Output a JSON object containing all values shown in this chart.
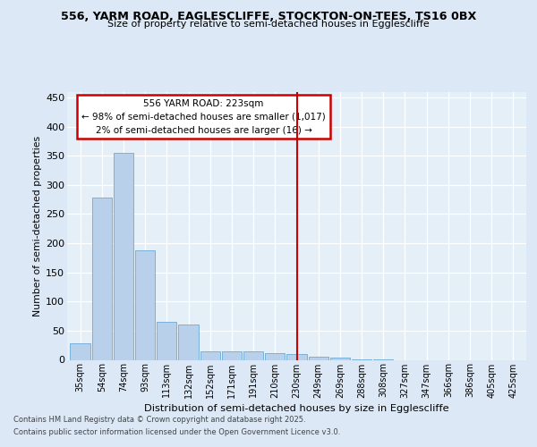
{
  "title1": "556, YARM ROAD, EAGLESCLIFFE, STOCKTON-ON-TEES, TS16 0BX",
  "title2": "Size of property relative to semi-detached houses in Egglescliffe",
  "xlabel": "Distribution of semi-detached houses by size in Egglescliffe",
  "ylabel": "Number of semi-detached properties",
  "categories": [
    "35sqm",
    "54sqm",
    "74sqm",
    "93sqm",
    "113sqm",
    "132sqm",
    "152sqm",
    "171sqm",
    "191sqm",
    "210sqm",
    "230sqm",
    "249sqm",
    "269sqm",
    "288sqm",
    "308sqm",
    "327sqm",
    "347sqm",
    "366sqm",
    "386sqm",
    "405sqm",
    "425sqm"
  ],
  "values": [
    28,
    278,
    355,
    188,
    65,
    60,
    15,
    15,
    15,
    12,
    10,
    5,
    4,
    1,
    1,
    0,
    0,
    0,
    0,
    0,
    0
  ],
  "bar_color": "#b8d0ea",
  "bar_edge_color": "#6aaad4",
  "vline_idx": 10,
  "vline_color": "#cc0000",
  "annotation_title": "556 YARM ROAD: 223sqm",
  "annotation_line1": "← 98% of semi-detached houses are smaller (1,017)",
  "annotation_line2": "2% of semi-detached houses are larger (16) →",
  "annotation_box_edgecolor": "#cc0000",
  "ylim": [
    0,
    460
  ],
  "yticks": [
    0,
    50,
    100,
    150,
    200,
    250,
    300,
    350,
    400,
    450
  ],
  "footer1": "Contains HM Land Registry data © Crown copyright and database right 2025.",
  "footer2": "Contains public sector information licensed under the Open Government Licence v3.0.",
  "fig_bg_color": "#dce8f5",
  "plot_bg_color": "#e4eff8"
}
